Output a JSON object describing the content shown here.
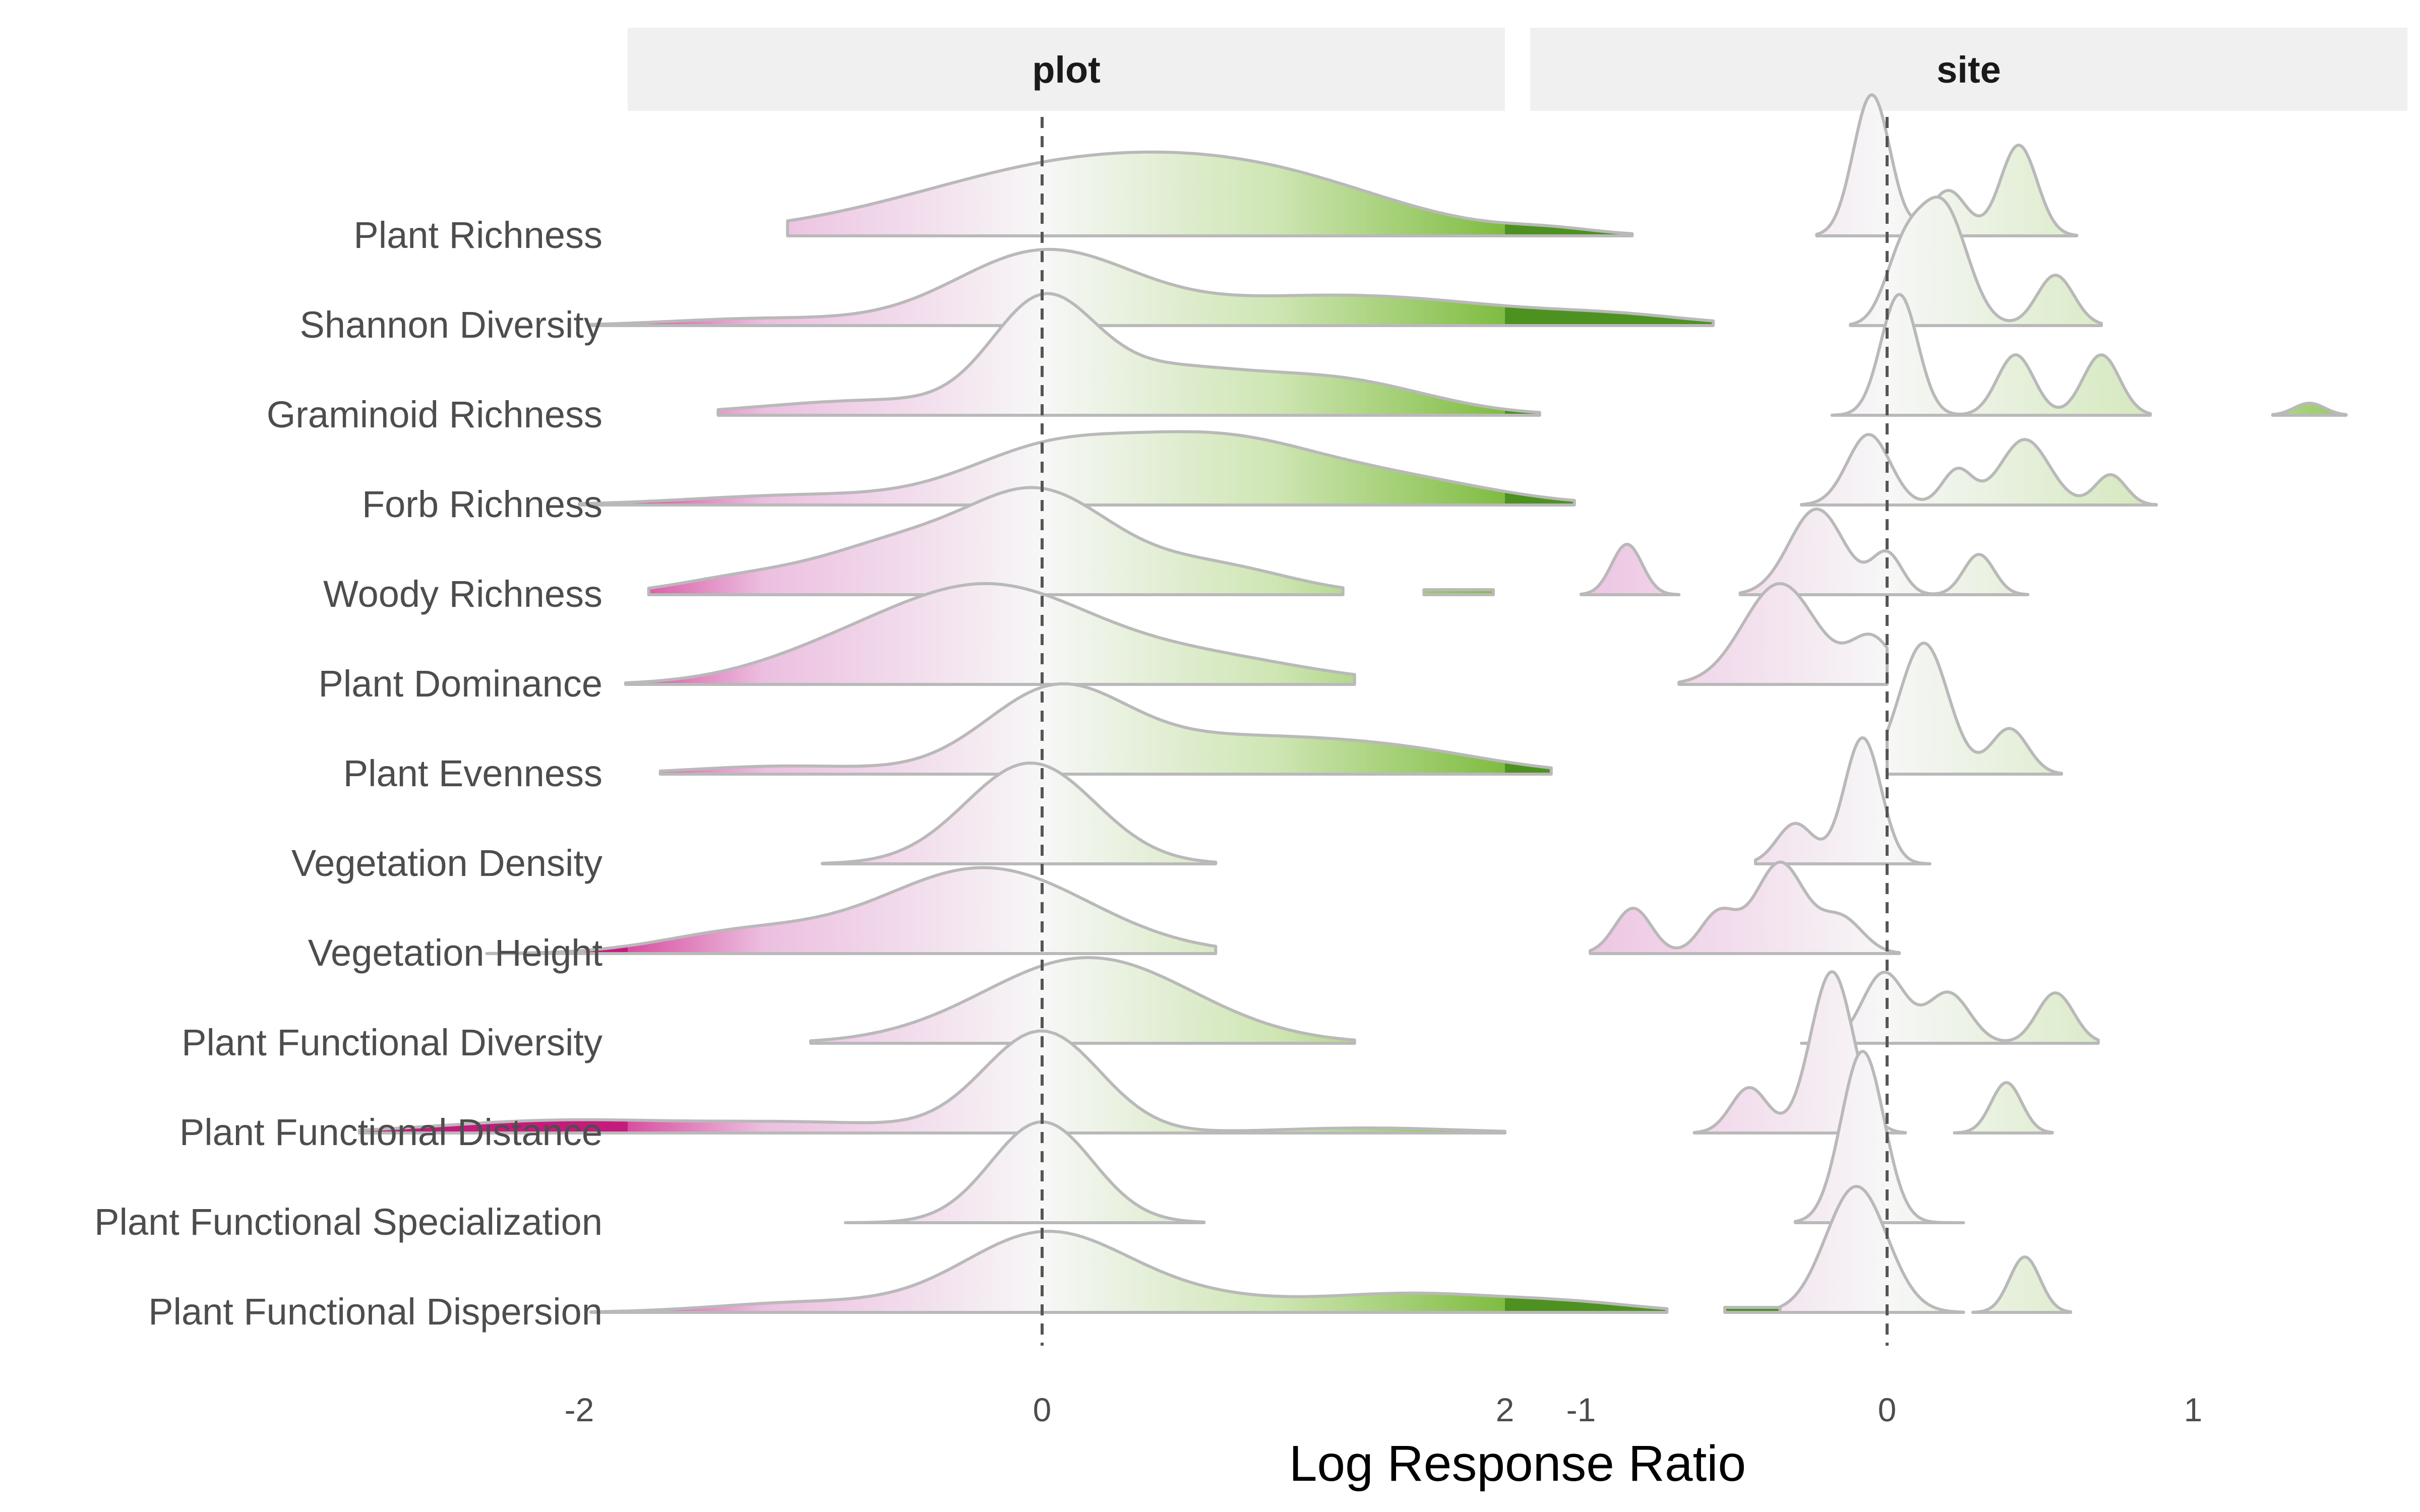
{
  "chart_data": {
    "type": "ridgeline",
    "xlabel": "Log Response Ratio",
    "categories": [
      "Plant Richness",
      "Shannon Diversity",
      "Graminoid Richness",
      "Forb Richness",
      "Woody Richness",
      "Plant Dominance",
      "Plant Evenness",
      "Vegetation Density",
      "Vegetation Height",
      "Plant Functional Diversity",
      "Plant Functional Distance",
      "Plant Functional Specialization",
      "Plant Functional Dispersion"
    ],
    "reference_line": {
      "x": 0,
      "style": "dashed"
    },
    "color_scale": {
      "negative": "#c51b7d",
      "zero": "#f7f7f7",
      "positive": "#4d9221"
    },
    "panels": [
      {
        "name": "plot",
        "xlim": [
          -2.9,
          3.9
        ],
        "xticks": [
          -2,
          0,
          2
        ],
        "xtick_labels": [
          "-2",
          "0",
          "2"
        ],
        "series": [
          {
            "category": "Plant Richness",
            "range": [
              -1.1,
              2.55
            ],
            "peaks": [
              {
                "x": 0.25,
                "h": 0.75,
                "w": 0.75
              },
              {
                "x": 1.1,
                "h": 0.25,
                "w": 0.5
              },
              {
                "x": 2.2,
                "h": 0.05,
                "w": 0.2
              }
            ]
          },
          {
            "category": "Shannon Diversity",
            "range": [
              -1.95,
              2.9
            ],
            "peaks": [
              {
                "x": 0.0,
                "h": 0.7,
                "w": 0.38
              },
              {
                "x": 1.3,
                "h": 0.3,
                "w": 0.7
              },
              {
                "x": -1.2,
                "h": 0.07,
                "w": 0.4
              },
              {
                "x": 2.5,
                "h": 0.06,
                "w": 0.3
              }
            ]
          },
          {
            "category": "Graminoid Richness",
            "range": [
              -1.4,
              2.15
            ],
            "peaks": [
              {
                "x": 0.0,
                "h": 1.0,
                "w": 0.22
              },
              {
                "x": 1.25,
                "h": 0.35,
                "w": 0.4
              },
              {
                "x": 0.5,
                "h": 0.4,
                "w": 0.35
              },
              {
                "x": -0.7,
                "h": 0.15,
                "w": 0.5
              }
            ]
          },
          {
            "category": "Forb Richness",
            "range": [
              -2.0,
              2.3
            ],
            "peaks": [
              {
                "x": 0.75,
                "h": 0.65,
                "w": 0.45
              },
              {
                "x": 0.0,
                "h": 0.45,
                "w": 0.35
              },
              {
                "x": 1.6,
                "h": 0.2,
                "w": 0.4
              },
              {
                "x": -1.0,
                "h": 0.1,
                "w": 0.5
              }
            ]
          },
          {
            "category": "Woody Richness",
            "range": [
              -1.7,
              1.3
            ],
            "peaks": [
              {
                "x": 0.0,
                "h": 0.9,
                "w": 0.3
              },
              {
                "x": -0.6,
                "h": 0.5,
                "w": 0.35
              },
              {
                "x": 0.7,
                "h": 0.3,
                "w": 0.35
              },
              {
                "x": -1.3,
                "h": 0.15,
                "w": 0.3
              }
            ],
            "extra_segment": {
              "x0": 1.65,
              "x1": 1.95,
              "h": 0.05
            }
          },
          {
            "category": "Plant Dominance",
            "range": [
              -1.8,
              1.35
            ],
            "peaks": [
              {
                "x": -0.2,
                "h": 0.8,
                "w": 0.4
              },
              {
                "x": -0.8,
                "h": 0.35,
                "w": 0.4
              },
              {
                "x": 0.6,
                "h": 0.3,
                "w": 0.5
              }
            ]
          },
          {
            "category": "Plant Evenness",
            "range": [
              -1.65,
              2.2
            ],
            "peaks": [
              {
                "x": 0.05,
                "h": 0.75,
                "w": 0.3
              },
              {
                "x": 0.8,
                "h": 0.35,
                "w": 0.55
              },
              {
                "x": 1.6,
                "h": 0.15,
                "w": 0.4
              },
              {
                "x": -1.1,
                "h": 0.08,
                "w": 0.4
              }
            ]
          },
          {
            "category": "Vegetation Density",
            "range": [
              -0.95,
              0.75
            ],
            "peaks": [
              {
                "x": -0.05,
                "h": 1.0,
                "w": 0.28
              }
            ]
          },
          {
            "category": "Vegetation Height",
            "range": [
              -2.4,
              0.75
            ],
            "peaks": [
              {
                "x": -0.25,
                "h": 0.85,
                "w": 0.45
              },
              {
                "x": -1.3,
                "h": 0.2,
                "w": 0.35
              }
            ]
          },
          {
            "category": "Plant Functional Diversity",
            "range": [
              -1.0,
              1.35
            ],
            "peaks": [
              {
                "x": 0.2,
                "h": 0.85,
                "w": 0.45
              }
            ]
          },
          {
            "category": "Plant Functional Distance",
            "range": [
              -2.95,
              2.0
            ],
            "peaks": [
              {
                "x": 0.0,
                "h": 1.0,
                "w": 0.25
              },
              {
                "x": -2.1,
                "h": 0.12,
                "w": 0.5
              },
              {
                "x": -1.0,
                "h": 0.1,
                "w": 0.5
              },
              {
                "x": 1.4,
                "h": 0.05,
                "w": 0.4
              }
            ]
          },
          {
            "category": "Plant Functional Specialization",
            "range": [
              -0.85,
              0.7
            ],
            "peaks": [
              {
                "x": 0.0,
                "h": 1.0,
                "w": 0.22
              }
            ]
          },
          {
            "category": "Plant Functional Dispersion",
            "range": [
              -1.95,
              2.7
            ],
            "peaks": [
              {
                "x": 0.0,
                "h": 0.75,
                "w": 0.35
              },
              {
                "x": 1.6,
                "h": 0.18,
                "w": 0.4
              },
              {
                "x": 0.6,
                "h": 0.15,
                "w": 0.4
              },
              {
                "x": -1.0,
                "h": 0.1,
                "w": 0.4
              },
              {
                "x": 2.3,
                "h": 0.08,
                "w": 0.3
              }
            ],
            "extra_segment": {
              "x0": 2.95,
              "x1": 3.2,
              "h": 0.05
            }
          }
        ]
      },
      {
        "name": "site",
        "xlim": [
          -1.1,
          1.7
        ],
        "xticks": [
          -1,
          0,
          1
        ],
        "xtick_labels": [
          "-1",
          "0",
          "1"
        ],
        "series": [
          {
            "category": "Plant Richness",
            "range": [
              -0.23,
              0.62
            ],
            "peaks": [
              {
                "x": -0.05,
                "h": 1.4,
                "w": 0.06
              },
              {
                "x": 0.43,
                "h": 0.9,
                "w": 0.06
              },
              {
                "x": 0.2,
                "h": 0.45,
                "w": 0.06
              }
            ]
          },
          {
            "category": "Shannon Diversity",
            "range": [
              -0.12,
              0.7
            ],
            "peaks": [
              {
                "x": 0.18,
                "h": 1.2,
                "w": 0.08
              },
              {
                "x": 0.05,
                "h": 0.6,
                "w": 0.06
              },
              {
                "x": 0.55,
                "h": 0.5,
                "w": 0.06
              }
            ]
          },
          {
            "category": "Graminoid Richness",
            "range": [
              -0.18,
              0.86
            ],
            "peaks": [
              {
                "x": 0.04,
                "h": 1.2,
                "w": 0.06
              },
              {
                "x": 0.42,
                "h": 0.6,
                "w": 0.06
              },
              {
                "x": 0.7,
                "h": 0.6,
                "w": 0.06
              }
            ],
            "extra_range": [
              1.26,
              1.5
            ],
            "extra_peaks": [
              {
                "x": 1.38,
                "h": 0.12,
                "w": 0.05
              }
            ]
          },
          {
            "category": "Forb Richness",
            "range": [
              -0.28,
              0.88
            ],
            "peaks": [
              {
                "x": -0.06,
                "h": 0.7,
                "w": 0.07
              },
              {
                "x": 0.45,
                "h": 0.65,
                "w": 0.08
              },
              {
                "x": 0.23,
                "h": 0.35,
                "w": 0.05
              },
              {
                "x": 0.73,
                "h": 0.3,
                "w": 0.05
              }
            ]
          },
          {
            "category": "Woody Richness",
            "range": [
              -0.48,
              0.46
            ],
            "peaks": [
              {
                "x": -0.23,
                "h": 0.85,
                "w": 0.09
              },
              {
                "x": 0.0,
                "h": 0.4,
                "w": 0.05
              },
              {
                "x": 0.3,
                "h": 0.4,
                "w": 0.05
              }
            ],
            "extra_range": [
              -1.0,
              -0.68
            ],
            "extra_peaks": [
              {
                "x": -0.85,
                "h": 0.5,
                "w": 0.05
              }
            ]
          },
          {
            "category": "Plant Dominance",
            "range": [
              -0.68,
              0.0
            ],
            "peaks": [
              {
                "x": -0.35,
                "h": 1.0,
                "w": 0.12
              },
              {
                "x": -0.05,
                "h": 0.45,
                "w": 0.07
              }
            ]
          },
          {
            "category": "Plant Evenness",
            "range": [
              0.0,
              0.57
            ],
            "peaks": [
              {
                "x": 0.12,
                "h": 1.3,
                "w": 0.08
              },
              {
                "x": 0.4,
                "h": 0.45,
                "w": 0.06
              }
            ]
          },
          {
            "category": "Vegetation Density",
            "range": [
              -0.43,
              0.14
            ],
            "peaks": [
              {
                "x": -0.08,
                "h": 1.25,
                "w": 0.06
              },
              {
                "x": -0.3,
                "h": 0.4,
                "w": 0.06
              }
            ]
          },
          {
            "category": "Vegetation Height",
            "range": [
              -0.97,
              0.04
            ],
            "peaks": [
              {
                "x": -0.35,
                "h": 0.9,
                "w": 0.08
              },
              {
                "x": -0.83,
                "h": 0.45,
                "w": 0.06
              },
              {
                "x": -0.55,
                "h": 0.4,
                "w": 0.06
              },
              {
                "x": -0.15,
                "h": 0.35,
                "w": 0.07
              }
            ]
          },
          {
            "category": "Plant Functional Diversity",
            "range": [
              -0.28,
              0.69
            ],
            "peaks": [
              {
                "x": -0.01,
                "h": 0.7,
                "w": 0.07
              },
              {
                "x": 0.2,
                "h": 0.5,
                "w": 0.07
              },
              {
                "x": 0.55,
                "h": 0.5,
                "w": 0.06
              }
            ]
          },
          {
            "category": "Plant Functional Distance",
            "range": [
              -0.63,
              0.06
            ],
            "peaks": [
              {
                "x": -0.18,
                "h": 1.6,
                "w": 0.07
              },
              {
                "x": -0.45,
                "h": 0.45,
                "w": 0.06
              }
            ],
            "extra_range": [
              0.22,
              0.54
            ],
            "extra_peaks": [
              {
                "x": 0.39,
                "h": 0.5,
                "w": 0.05
              }
            ]
          },
          {
            "category": "Plant Functional Specialization",
            "range": [
              -0.3,
              0.25
            ],
            "peaks": [
              {
                "x": -0.08,
                "h": 1.7,
                "w": 0.07
              }
            ]
          },
          {
            "category": "Plant Functional Dispersion",
            "range": [
              -0.35,
              0.25
            ],
            "peaks": [
              {
                "x": -0.1,
                "h": 1.25,
                "w": 0.1
              }
            ],
            "extra_range": [
              0.28,
              0.6
            ],
            "extra_peaks": [
              {
                "x": 0.45,
                "h": 0.55,
                "w": 0.05
              }
            ]
          }
        ]
      }
    ]
  }
}
